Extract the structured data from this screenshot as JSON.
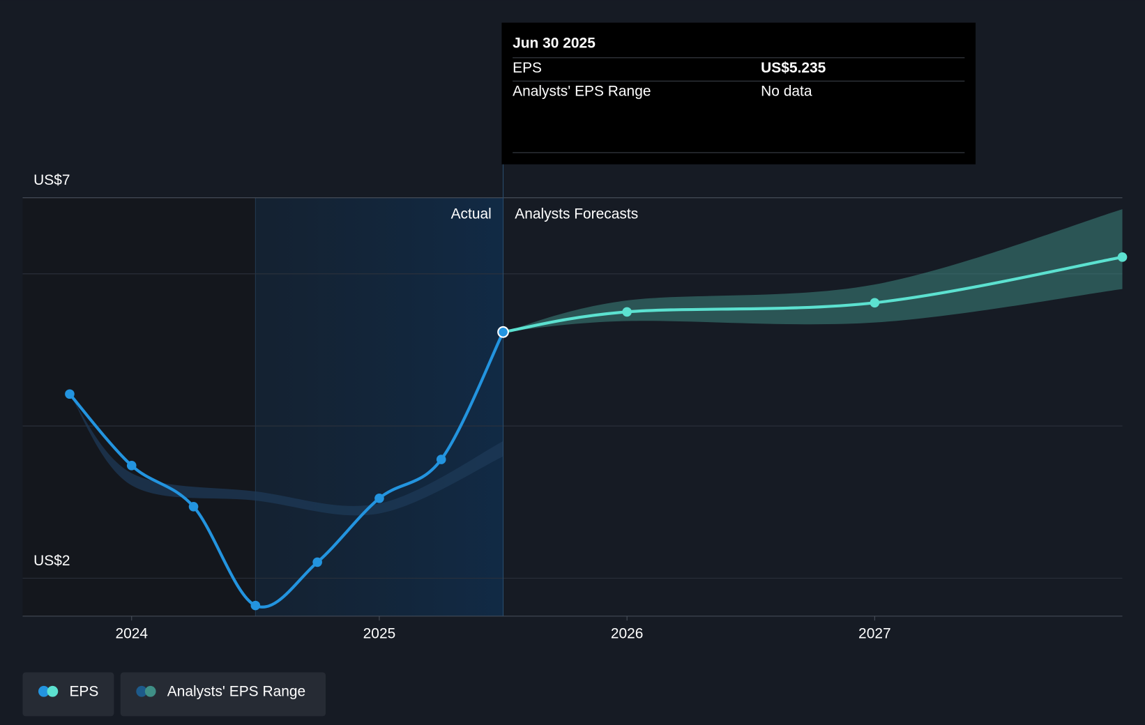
{
  "chart_data": {
    "type": "line",
    "xlim": [
      2023.56,
      2028.0
    ],
    "ylim": [
      1.5,
      7.44
    ],
    "xticks": [
      2024,
      2025,
      2026,
      2027
    ],
    "yticks": [
      {
        "value": 2,
        "label": "US$2"
      },
      {
        "value": 7,
        "label": "US$7"
      }
    ],
    "gridlines": [
      4,
      6
    ],
    "divider_x": 2025.5,
    "actual_label": "Actual",
    "forecast_label": "Analysts Forecasts",
    "eps": {
      "name": "EPS",
      "actual": {
        "color": "#2394df",
        "x": [
          2023.75,
          2024.0,
          2024.25,
          2024.5,
          2024.75,
          2025.0,
          2025.25,
          2025.5
        ],
        "values": [
          4.42,
          3.48,
          2.94,
          1.64,
          2.21,
          3.05,
          3.56,
          5.235
        ]
      },
      "forecast": {
        "color": "#5ce1d0",
        "x": [
          2026.0,
          2027.0,
          2028.0
        ],
        "values": [
          5.5,
          5.62,
          6.22
        ]
      }
    },
    "range": {
      "name": "Analysts' EPS Range",
      "past": {
        "color": "#1d3a57",
        "x": [
          2023.75,
          2024.0,
          2024.5,
          2025.0,
          2025.5
        ],
        "low": [
          4.42,
          3.22,
          3.02,
          2.85,
          3.6
        ],
        "high": [
          4.42,
          3.38,
          3.14,
          2.98,
          3.8
        ]
      },
      "forecast": {
        "color": "#3f8f86",
        "x": [
          2025.5,
          2026.0,
          2027.0,
          2028.0
        ],
        "low": [
          5.235,
          5.38,
          5.36,
          5.8
        ],
        "high": [
          5.235,
          5.65,
          5.86,
          6.85
        ]
      }
    },
    "tooltip": {
      "date": "Jun 30 2025",
      "rows": [
        {
          "label": "EPS",
          "value": "US$5.235"
        },
        {
          "label": "Analysts' EPS Range",
          "value": "No data"
        }
      ]
    }
  }
}
